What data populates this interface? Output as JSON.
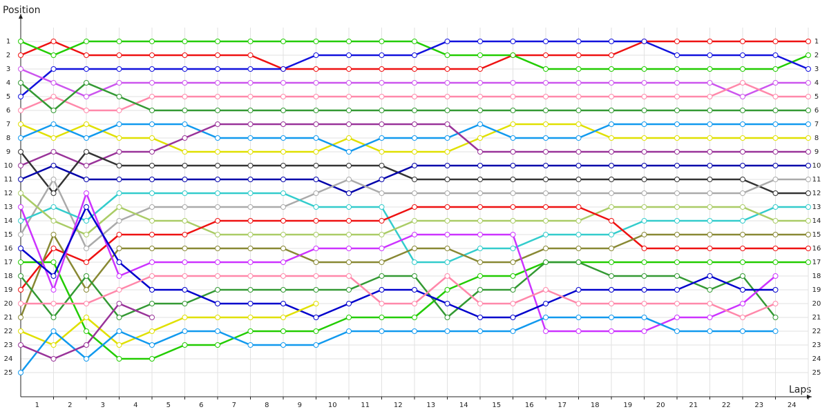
{
  "chart_data": {
    "type": "line",
    "x_label": "Laps",
    "y_label": "Position",
    "x": [
      0,
      1,
      2,
      3,
      4,
      5,
      6,
      7,
      8,
      9,
      10,
      11,
      12,
      13,
      14,
      15,
      16,
      17,
      18,
      19,
      20,
      21,
      22,
      23,
      24
    ],
    "xlim": [
      0,
      24
    ],
    "xticks": [
      1,
      2,
      3,
      4,
      5,
      6,
      7,
      8,
      9,
      10,
      11,
      12,
      13,
      14,
      15,
      16,
      17,
      18,
      19,
      20,
      21,
      22,
      23,
      24
    ],
    "ylim": [
      26.75,
      -1
    ],
    "yticks": [
      1,
      2,
      3,
      4,
      5,
      6,
      7,
      8,
      9,
      10,
      11,
      12,
      13,
      14,
      15,
      16,
      17,
      18,
      19,
      20,
      21,
      22,
      23,
      24,
      25
    ],
    "grid": true,
    "series": [
      {
        "color": "#ee1111",
        "values": [
          2,
          1,
          2,
          2,
          2,
          2,
          2,
          2,
          3,
          3,
          3,
          3,
          3,
          3,
          3,
          2,
          2,
          2,
          2,
          1,
          1,
          1,
          1,
          1,
          1
        ]
      },
      {
        "color": "#22cc00",
        "values": [
          1,
          2,
          1,
          1,
          1,
          1,
          1,
          1,
          1,
          1,
          1,
          1,
          1,
          2,
          2,
          2,
          3,
          3,
          3,
          3,
          3,
          3,
          3,
          3,
          2
        ]
      },
      {
        "color": "#1111dd",
        "values": [
          5,
          3,
          3,
          3,
          3,
          3,
          3,
          3,
          3,
          2,
          2,
          2,
          2,
          1,
          1,
          1,
          1,
          1,
          1,
          1,
          2,
          2,
          2,
          2,
          3
        ]
      },
      {
        "color": "#cc55ee",
        "values": [
          3,
          4,
          5,
          4,
          4,
          4,
          4,
          4,
          4,
          4,
          4,
          4,
          4,
          4,
          4,
          4,
          4,
          4,
          4,
          4,
          4,
          4,
          5,
          4,
          4
        ]
      },
      {
        "color": "#ff88aa",
        "values": [
          6,
          5,
          6,
          6,
          5,
          5,
          5,
          5,
          5,
          5,
          5,
          5,
          5,
          5,
          5,
          5,
          5,
          5,
          5,
          5,
          5,
          5,
          4,
          5,
          5
        ]
      },
      {
        "color": "#339933",
        "values": [
          4,
          6,
          4,
          5,
          6,
          6,
          6,
          6,
          6,
          6,
          6,
          6,
          6,
          6,
          6,
          6,
          6,
          6,
          6,
          6,
          6,
          6,
          6,
          6,
          6
        ]
      },
      {
        "color": "#e0e000",
        "values": [
          7,
          8,
          7,
          8,
          8,
          9,
          9,
          9,
          9,
          9,
          8,
          9,
          9,
          9,
          8,
          7,
          7,
          7,
          8,
          8,
          8,
          8,
          8,
          8,
          8
        ]
      },
      {
        "color": "#1199ee",
        "values": [
          8,
          7,
          8,
          7,
          7,
          7,
          8,
          8,
          8,
          8,
          9,
          8,
          8,
          8,
          7,
          8,
          8,
          8,
          7,
          7,
          7,
          7,
          7,
          7,
          7
        ]
      },
      {
        "color": "#993399",
        "values": [
          10,
          9,
          10,
          9,
          9,
          8,
          7,
          7,
          7,
          7,
          7,
          7,
          7,
          7,
          9,
          9,
          9,
          9,
          9,
          9,
          9,
          9,
          9,
          9,
          9
        ]
      },
      {
        "color": "#333333",
        "values": [
          9,
          12,
          9,
          10,
          10,
          10,
          10,
          10,
          10,
          10,
          10,
          10,
          11,
          11,
          11,
          11,
          11,
          11,
          11,
          11,
          11,
          11,
          11,
          12,
          12
        ]
      },
      {
        "color": "#0000aa",
        "values": [
          11,
          10,
          11,
          11,
          11,
          11,
          11,
          11,
          11,
          11,
          12,
          11,
          10,
          10,
          10,
          10,
          10,
          10,
          10,
          10,
          10,
          10,
          10,
          10,
          10
        ]
      },
      {
        "color": "#aaaaaa",
        "values": [
          15,
          11,
          16,
          14,
          13,
          13,
          13,
          13,
          13,
          12,
          11,
          12,
          12,
          12,
          12,
          12,
          12,
          12,
          12,
          12,
          12,
          12,
          12,
          11,
          11
        ]
      },
      {
        "color": "#33cccc",
        "values": [
          14,
          13,
          14,
          12,
          12,
          12,
          12,
          12,
          12,
          13,
          13,
          13,
          17,
          17,
          16,
          16,
          15,
          15,
          15,
          14,
          14,
          14,
          14,
          13,
          13
        ]
      },
      {
        "color": "#aacc66",
        "values": [
          12,
          14,
          15,
          13,
          14,
          14,
          15,
          15,
          15,
          15,
          15,
          15,
          14,
          14,
          14,
          14,
          14,
          14,
          13,
          13,
          13,
          13,
          13,
          14,
          14
        ]
      },
      {
        "color": "#ee1111",
        "values": [
          19,
          16,
          17,
          15,
          15,
          15,
          14,
          14,
          14,
          14,
          14,
          14,
          13,
          13,
          13,
          13,
          13,
          13,
          14,
          16,
          16,
          16,
          16,
          16,
          16
        ]
      },
      {
        "color": "#888833",
        "values": [
          21,
          15,
          19,
          16,
          16,
          16,
          16,
          16,
          16,
          17,
          17,
          17,
          16,
          16,
          17,
          17,
          16,
          16,
          16,
          15,
          15,
          15,
          15,
          15,
          15
        ]
      },
      {
        "color": "#22cc00",
        "values": [
          17,
          17,
          22,
          24,
          24,
          23,
          23,
          22,
          22,
          22,
          21,
          21,
          21,
          19,
          18,
          18,
          17,
          17,
          17,
          17,
          17,
          17,
          17,
          17,
          17
        ]
      },
      {
        "color": "#339933",
        "values": [
          18,
          21,
          18,
          21,
          20,
          20,
          19,
          19,
          19,
          19,
          19,
          18,
          18,
          21,
          19,
          19,
          17,
          17,
          18,
          18,
          18,
          19,
          18,
          21,
          null
        ]
      },
      {
        "color": "#cc33ff",
        "values": [
          13,
          19,
          12,
          18,
          17,
          17,
          17,
          17,
          17,
          16,
          16,
          16,
          15,
          15,
          15,
          15,
          22,
          22,
          22,
          22,
          21,
          21,
          20,
          18,
          null
        ]
      },
      {
        "color": "#0000cc",
        "values": [
          16,
          18,
          13,
          17,
          19,
          19,
          20,
          20,
          20,
          21,
          20,
          19,
          19,
          20,
          21,
          21,
          20,
          19,
          19,
          19,
          19,
          18,
          19,
          19,
          null
        ]
      },
      {
        "color": "#ff88aa",
        "values": [
          20,
          20,
          20,
          19,
          18,
          18,
          18,
          18,
          18,
          18,
          18,
          20,
          20,
          18,
          20,
          20,
          19,
          20,
          20,
          20,
          20,
          20,
          21,
          20,
          null
        ]
      },
      {
        "color": "#e0e000",
        "values": [
          22,
          23,
          21,
          23,
          22,
          21,
          21,
          21,
          21,
          20,
          null,
          null,
          null,
          null,
          null,
          null,
          null,
          null,
          null,
          null,
          null,
          null,
          null,
          null,
          null
        ]
      },
      {
        "color": "#1199ee",
        "values": [
          25,
          22,
          24,
          22,
          23,
          22,
          22,
          23,
          23,
          23,
          22,
          22,
          22,
          22,
          22,
          22,
          21,
          21,
          21,
          21,
          22,
          22,
          22,
          22,
          null
        ]
      },
      {
        "color": "#993399",
        "values": [
          23,
          24,
          23,
          20,
          21,
          null,
          null,
          null,
          null,
          null,
          null,
          null,
          null,
          null,
          null,
          null,
          null,
          null,
          null,
          null,
          null,
          null,
          null,
          null,
          null
        ]
      }
    ]
  }
}
